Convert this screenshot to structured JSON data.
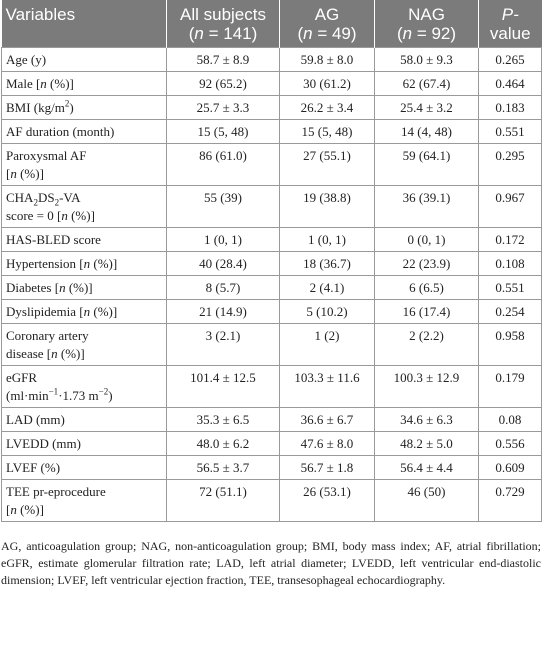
{
  "header": {
    "col1": "Variables",
    "col2_line1": "All subjects",
    "col2_line2_pre": "(",
    "col2_n": "n",
    "col2_line2_post": " = 141)",
    "col3_line1": "AG",
    "col3_line2_pre": "(",
    "col3_n": "n",
    "col3_line2_post": " = 49)",
    "col4_line1": "NAG",
    "col4_line2_pre": "(",
    "col4_n": "n",
    "col4_line2_post": " = 92)",
    "col5_line1": "P-",
    "col5_line2": "value"
  },
  "rows": [
    {
      "var_a": "Age (y)",
      "all": "58.7 ± 8.9",
      "ag": "59.8 ± 8.0",
      "nag": "58.0 ± 9.3",
      "p": "0.265"
    },
    {
      "var_a": "Male [",
      "var_n": "n",
      "var_b": " (%)]",
      "all": "92 (65.2)",
      "ag": "30 (61.2)",
      "nag": "62 (67.4)",
      "p": "0.464"
    },
    {
      "var_a": "BMI (kg/m",
      "var_sup": "2",
      "var_b": ")",
      "all": "25.7 ± 3.3",
      "ag": "26.2 ± 3.4",
      "nag": "25.4 ± 3.2",
      "p": "0.183"
    },
    {
      "var_a": "AF duration (month)",
      "all": "15 (5, 48)",
      "ag": "15 (5, 48)",
      "nag": "14 (4, 48)",
      "p": "0.551"
    },
    {
      "var_a": "Paroxysmal AF",
      "var_line2_a": "[",
      "var_line2_n": "n",
      "var_line2_b": " (%)]",
      "all": "86 (61.0)",
      "ag": "27 (55.1)",
      "nag": "59 (64.1)",
      "p": "0.295"
    },
    {
      "var_a": "CHA",
      "var_sub1": "2",
      "var_mid": "DS",
      "var_sub2": "2",
      "var_b": "-VA",
      "var_line2_a": "score = 0 [",
      "var_line2_n": "n",
      "var_line2_b": " (%)]",
      "all": "55 (39)",
      "ag": "19 (38.8)",
      "nag": "36 (39.1)",
      "p": "0.967"
    },
    {
      "var_a": "HAS-BLED score",
      "all": "1 (0, 1)",
      "ag": "1 (0, 1)",
      "nag": "0 (0, 1)",
      "p": "0.172"
    },
    {
      "var_a": "Hypertension [",
      "var_n": "n",
      "var_b": " (%)]",
      "all": "40 (28.4)",
      "ag": "18 (36.7)",
      "nag": "22 (23.9)",
      "p": "0.108"
    },
    {
      "var_a": "Diabetes [",
      "var_n": "n",
      "var_b": " (%)]",
      "all": "8 (5.7)",
      "ag": "2 (4.1)",
      "nag": "6 (6.5)",
      "p": "0.551"
    },
    {
      "var_a": "Dyslipidemia [",
      "var_n": "n",
      "var_b": " (%)]",
      "all": "21 (14.9)",
      "ag": "5 (10.2)",
      "nag": "16 (17.4)",
      "p": "0.254"
    },
    {
      "var_a": "Coronary artery",
      "var_line2_a": "disease [",
      "var_line2_n": "n",
      "var_line2_b": " (%)]",
      "all": "3 (2.1)",
      "ag": "1 (2)",
      "nag": "2 (2.2)",
      "p": "0.958"
    },
    {
      "var_a": "eGFR",
      "var_line2_a": "(ml·min",
      "var_line2_sup1": "−1",
      "var_line2_mid": "·1.73 m",
      "var_line2_sup2": "−2",
      "var_line2_b": ")",
      "all": "101.4 ± 12.5",
      "ag": "103.3 ± 11.6",
      "nag": "100.3 ± 12.9",
      "p": "0.179"
    },
    {
      "var_a": "LAD (mm)",
      "all": "35.3 ± 6.5",
      "ag": "36.6 ± 6.7",
      "nag": "34.6 ± 6.3",
      "p": "0.08"
    },
    {
      "var_a": "LVEDD (mm)",
      "all": "48.0 ± 6.2",
      "ag": "47.6 ± 8.0",
      "nag": "48.2 ± 5.0",
      "p": "0.556"
    },
    {
      "var_a": "LVEF (%)",
      "all": "56.5 ± 3.7",
      "ag": "56.7 ± 1.8",
      "nag": "56.4 ± 4.4",
      "p": "0.609"
    },
    {
      "var_a": "TEE pr-eprocedure",
      "var_line2_a": "[",
      "var_line2_n": "n",
      "var_line2_b": " (%)]",
      "all": "72 (51.1)",
      "ag": "26 (53.1)",
      "nag": "46 (50)",
      "p": "0.729"
    }
  ],
  "footnote": "AG, anticoagulation group; NAG, non-anticoagulation group; BMI, body mass index; AF, atrial fibrillation; eGFR, estimate glomerular filtration rate; LAD, left atrial diameter; LVEDD, left ventricular end-diastolic dimension; LVEF, left ventricular ejection fraction, TEE, transesophageal echocardiography."
}
